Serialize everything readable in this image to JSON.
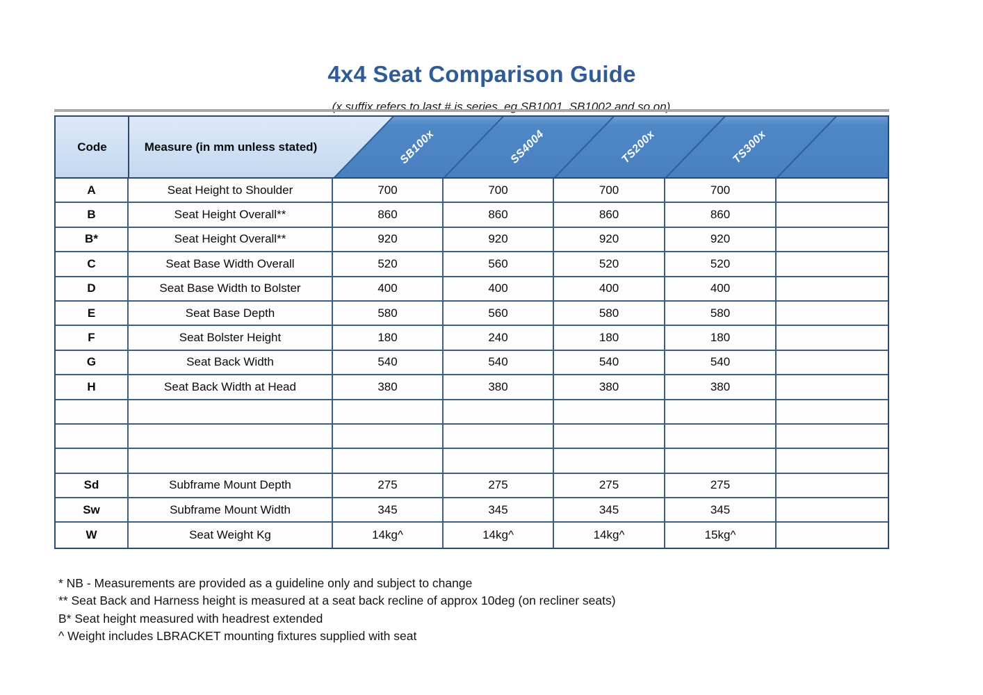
{
  "title": "4x4 Seat Comparison Guide",
  "subtitle": "(x suffix refers to last # is series, eg SB1001, SB1002 and so on)",
  "table": {
    "headers": {
      "code": "Code",
      "measure": "Measure (in mm unless stated)"
    },
    "product_columns": [
      "SB100x",
      "SS4004",
      "TS200x",
      "TS300x"
    ],
    "rows": [
      {
        "code": "A",
        "measure": "Seat Height to Shoulder",
        "values": [
          "700",
          "700",
          "700",
          "700"
        ]
      },
      {
        "code": "B",
        "measure": "Seat Height Overall**",
        "values": [
          "860",
          "860",
          "860",
          "860"
        ]
      },
      {
        "code": "B*",
        "measure": "Seat Height Overall**",
        "values": [
          "920",
          "920",
          "920",
          "920"
        ]
      },
      {
        "code": "C",
        "measure": "Seat Base Width Overall",
        "values": [
          "520",
          "560",
          "520",
          "520"
        ]
      },
      {
        "code": "D",
        "measure": "Seat Base Width to Bolster",
        "values": [
          "400",
          "400",
          "400",
          "400"
        ]
      },
      {
        "code": "E",
        "measure": "Seat Base Depth",
        "values": [
          "580",
          "560",
          "580",
          "580"
        ]
      },
      {
        "code": "F",
        "measure": "Seat Bolster Height",
        "values": [
          "180",
          "240",
          "180",
          "180"
        ]
      },
      {
        "code": "G",
        "measure": "Seat Back Width",
        "values": [
          "540",
          "540",
          "540",
          "540"
        ]
      },
      {
        "code": "H",
        "measure": "Seat Back Width at Head",
        "values": [
          "380",
          "380",
          "380",
          "380"
        ]
      },
      {
        "code": "",
        "measure": "",
        "values": [
          "",
          "",
          "",
          ""
        ]
      },
      {
        "code": "",
        "measure": "",
        "values": [
          "",
          "",
          "",
          ""
        ]
      },
      {
        "code": "",
        "measure": "",
        "values": [
          "",
          "",
          "",
          ""
        ]
      },
      {
        "code": "Sd",
        "measure": "Subframe Mount Depth",
        "values": [
          "275",
          "275",
          "275",
          "275"
        ]
      },
      {
        "code": "Sw",
        "measure": "Subframe Mount Width",
        "values": [
          "345",
          "345",
          "345",
          "345"
        ]
      },
      {
        "code": "W",
        "measure": "Seat Weight Kg",
        "values": [
          "14kg^",
          "14kg^",
          "14kg^",
          "15kg^"
        ]
      }
    ]
  },
  "footnotes": [
    "* NB - Measurements are provided as a guideline only and subject to change",
    "** Seat Back and Harness height is measured at a seat back recline of approx 10deg (on recliner seats)",
    "B* Seat height measured with headrest extended",
    "^ Weight includes LBRACKET mounting fixtures supplied with seat"
  ],
  "colors": {
    "title_blue": "#2f5b96",
    "header_light_blue": "#c9dbf1",
    "header_dark_blue": "#4e87c6",
    "header_diagonal_line": "#2d5f9b",
    "grid_border": "#3d5f85",
    "outer_border": "#2b4a6b",
    "header_label_text": "#ffffff"
  }
}
